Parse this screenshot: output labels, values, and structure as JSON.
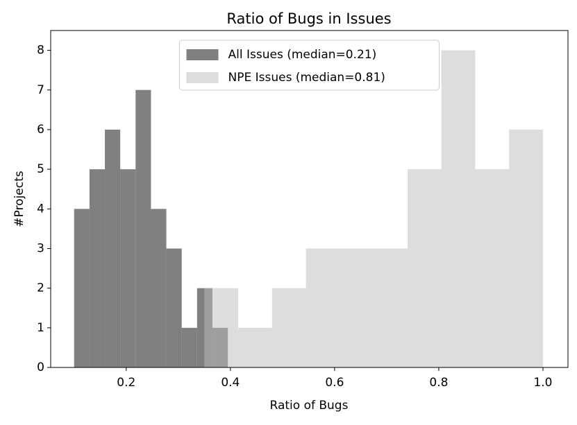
{
  "chart_data": {
    "type": "histogram",
    "title": "Ratio of Bugs in Issues",
    "x_label": "Ratio of Bugs",
    "y_label": "#Projects",
    "series": [
      {
        "name": "All Issues (median=0.21)",
        "color": "#555555",
        "bins": [
          0.1,
          0.1295,
          0.159,
          0.1885,
          0.218,
          0.2475,
          0.277,
          0.3065,
          0.336,
          0.3655,
          0.395
        ],
        "values": [
          4,
          5,
          6,
          5,
          7,
          4,
          3,
          1,
          2,
          1
        ]
      },
      {
        "name": "NPE Issues (median=0.81)",
        "color": "#bbbbbb",
        "bins": [
          0.35,
          0.415,
          0.48,
          0.545,
          0.61,
          0.675,
          0.74,
          0.805,
          0.87,
          0.935,
          1.0
        ],
        "values": [
          2,
          1,
          2,
          3,
          3,
          3,
          5,
          8,
          5,
          6
        ]
      }
    ],
    "xlim": [
      0.055,
      1.048
    ],
    "ylim": [
      0,
      8.5
    ],
    "xticks": [
      0.2,
      0.4,
      0.6,
      0.8,
      {
        "value": 1,
        "label": "1.0"
      }
    ],
    "yticks": [
      0,
      1,
      2,
      3,
      4,
      5,
      6,
      7,
      8
    ],
    "legend": "upper center"
  }
}
